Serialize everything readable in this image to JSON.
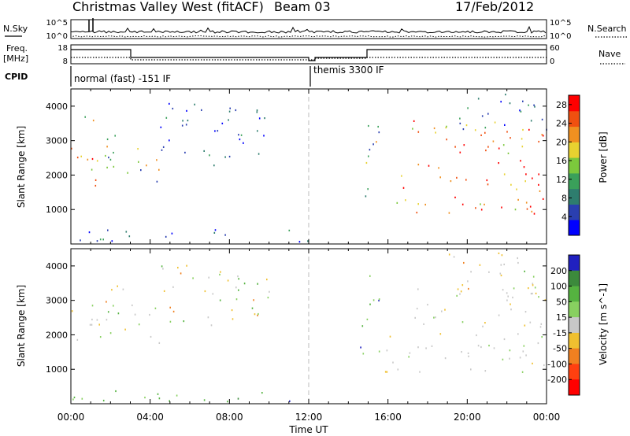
{
  "header": {
    "title": "Christmas Valley West (fitACF)",
    "beam": "Beam 03",
    "date": "17/Feb/2012"
  },
  "noise_panel": {
    "left_label": "N.Sky",
    "right_label": "N.Search",
    "left_ticks": [
      "10^5",
      "10^0"
    ],
    "right_ticks": [
      "10^5",
      "10^0"
    ]
  },
  "freq_panel": {
    "left_label_1": "Freq.",
    "left_label_2": "[MHz]",
    "right_label": "Nave",
    "left_ticks": [
      "18",
      "8"
    ],
    "right_ticks": [
      "60",
      "0"
    ]
  },
  "cpid": {
    "label": "CPID",
    "programs": [
      "normal (fast) -151 IF",
      "themis 3300 IF"
    ]
  },
  "chart_data": [
    {
      "type": "heatmap",
      "name": "power",
      "ylabel": "Slant Range [km]",
      "ylim": [
        0,
        4500
      ],
      "y_ticks": [
        "1000",
        "2000",
        "3000",
        "4000"
      ],
      "x_ticks": [
        "00:00",
        "04:00",
        "08:00",
        "12:00",
        "16:00",
        "20:00",
        "00:00"
      ],
      "xlim_hours": [
        0,
        24
      ],
      "colorbar": {
        "label": "Power [dB]",
        "ticks": [
          "4",
          "8",
          "12",
          "16",
          "20",
          "24",
          "28"
        ],
        "range": [
          0,
          30
        ],
        "colors": [
          "#0000ff",
          "#2a3fb0",
          "#2e7d6e",
          "#3aa05a",
          "#7cc83c",
          "#e8d230",
          "#f09020",
          "#f05010",
          "#ff0000"
        ]
      },
      "echo_regions": [
        {
          "t": [
            0.0,
            1.5
          ],
          "r": [
            1550,
            2900
          ],
          "level": "high"
        },
        {
          "t": [
            0.0,
            1.2
          ],
          "r": [
            3300,
            3750
          ],
          "level": "mid"
        },
        {
          "t": [
            1.2,
            3.0
          ],
          "r": [
            2000,
            3600
          ],
          "level": "mid"
        },
        {
          "t": [
            3.0,
            4.5
          ],
          "r": [
            1700,
            2900
          ],
          "level": "mid"
        },
        {
          "t": [
            4.5,
            10.0
          ],
          "r": [
            2300,
            4100
          ],
          "level": "low"
        },
        {
          "t": [
            0.0,
            12.0
          ],
          "r": [
            80,
            450
          ],
          "level": "low"
        },
        {
          "t": [
            14.5,
            15.6
          ],
          "r": [
            1400,
            3800
          ],
          "level": "mid"
        },
        {
          "t": [
            15.8,
            24.0
          ],
          "r": [
            900,
            2100
          ],
          "level": "high"
        },
        {
          "t": [
            17.2,
            24.0
          ],
          "r": [
            2200,
            3600
          ],
          "level": "high"
        },
        {
          "t": [
            19.0,
            24.0
          ],
          "r": [
            3300,
            4400
          ],
          "level": "low"
        }
      ]
    },
    {
      "type": "heatmap",
      "name": "velocity",
      "ylabel": "Slant Range [km]",
      "ylim": [
        0,
        4500
      ],
      "y_ticks": [
        "1000",
        "2000",
        "3000",
        "4000"
      ],
      "x_ticks": [
        "00:00",
        "04:00",
        "08:00",
        "12:00",
        "16:00",
        "20:00",
        "00:00"
      ],
      "xlabel": "Time UT",
      "xlim_hours": [
        0,
        24
      ],
      "colorbar": {
        "label": "Velocity [m s^-1]",
        "ticks": [
          "200",
          "100",
          "50",
          "15",
          "-15",
          "-50",
          "-100",
          "-200"
        ],
        "range": [
          -250,
          250
        ],
        "colors": [
          "#2020c0",
          "#3c8a3c",
          "#55b340",
          "#88d060",
          "#c8c8c8",
          "#f0c030",
          "#f08020",
          "#ff4010",
          "#ff0000"
        ]
      },
      "echo_regions": [
        {
          "t": [
            0.0,
            1.5
          ],
          "r": [
            1550,
            2900
          ],
          "level": "ground"
        },
        {
          "t": [
            1.2,
            3.0
          ],
          "r": [
            2000,
            3600
          ],
          "level": "mixed"
        },
        {
          "t": [
            3.0,
            4.5
          ],
          "r": [
            1700,
            2900
          ],
          "level": "ground"
        },
        {
          "t": [
            4.5,
            10.0
          ],
          "r": [
            2300,
            4100
          ],
          "level": "mixed"
        },
        {
          "t": [
            0.0,
            12.0
          ],
          "r": [
            80,
            400
          ],
          "level": "positive"
        },
        {
          "t": [
            14.5,
            15.6
          ],
          "r": [
            1400,
            3800
          ],
          "level": "positive"
        },
        {
          "t": [
            15.8,
            24.0
          ],
          "r": [
            900,
            2100
          ],
          "level": "ground"
        },
        {
          "t": [
            17.2,
            24.0
          ],
          "r": [
            2200,
            3600
          ],
          "level": "ground"
        },
        {
          "t": [
            19.0,
            24.0
          ],
          "r": [
            3300,
            4400
          ],
          "level": "mixed"
        }
      ]
    }
  ],
  "colors": {
    "axis": "#000000",
    "dashed_marker": "#bbbbbb"
  }
}
